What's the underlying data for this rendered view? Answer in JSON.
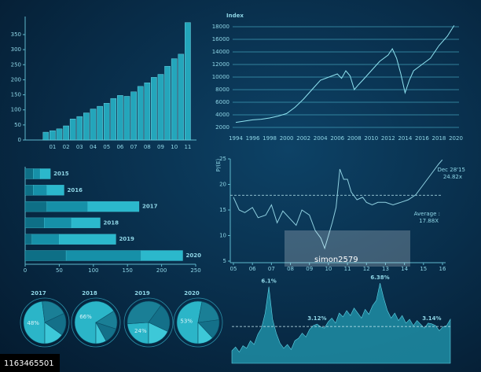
{
  "chart_data": [
    {
      "type": "bar",
      "color": "#27b3c6",
      "categories": [
        null,
        "01",
        null,
        "02",
        null,
        "03",
        null,
        "04",
        null,
        "05",
        null,
        "06",
        null,
        "07",
        null,
        "08",
        null,
        "09",
        null,
        "10",
        null,
        "11"
      ],
      "values": [
        26,
        31,
        37,
        47,
        70,
        78,
        90,
        103,
        112,
        122,
        138,
        148,
        145,
        160,
        178,
        190,
        208,
        218,
        245,
        270,
        285,
        390
      ],
      "ylim": [
        0,
        410
      ],
      "yticks": [
        0,
        50,
        100,
        150,
        200,
        250,
        300,
        350
      ]
    },
    {
      "type": "line",
      "title": "Index",
      "color": "#8fe3f0",
      "grid": true,
      "x": [
        1994,
        1995,
        1996,
        1997,
        1998,
        1999,
        2000,
        2001,
        2002,
        2003,
        2004,
        2005,
        2006,
        2006.5,
        2007,
        2007.5,
        2008,
        2008.5,
        2009,
        2010,
        2011,
        2012,
        2012.5,
        2013,
        2013.5,
        2014,
        2014.5,
        2015,
        2016,
        2017,
        2018,
        2019,
        2019.8
      ],
      "values": [
        2800,
        3000,
        3200,
        3300,
        3500,
        3800,
        4200,
        5200,
        6500,
        8000,
        9500,
        10000,
        10500,
        9800,
        11000,
        10200,
        8000,
        8800,
        9500,
        11000,
        12500,
        13500,
        14500,
        13000,
        10500,
        7500,
        9500,
        11000,
        12000,
        13000,
        15000,
        16500,
        18200
      ],
      "xlim": [
        1994,
        2020
      ],
      "xticks": [
        1994,
        1996,
        1998,
        2000,
        2002,
        2004,
        2006,
        2008,
        2010,
        2012,
        2014,
        2016,
        2018,
        2020
      ],
      "ylim": [
        2000,
        18000
      ],
      "yticks": [
        2000,
        4000,
        6000,
        8000,
        10000,
        12000,
        14000,
        16000,
        18000
      ]
    },
    {
      "type": "hbar-stacked",
      "categories": [
        "2015",
        "2016",
        "2017",
        "2018",
        "2019",
        "2020"
      ],
      "series": [
        {
          "color": "#0e6f86",
          "values": [
            12,
            12,
            32,
            28,
            10,
            60
          ]
        },
        {
          "color": "#1690a8",
          "values": [
            10,
            20,
            60,
            40,
            40,
            110
          ]
        },
        {
          "color": "#2bb8cc",
          "values": [
            15,
            25,
            75,
            42,
            83,
            61
          ]
        }
      ],
      "xlim": [
        0,
        250
      ],
      "xticks": [
        0,
        50,
        100,
        150,
        200,
        250
      ]
    },
    {
      "type": "line",
      "y_label": "P/(E)",
      "color": "#8fd0e0",
      "x": [
        5,
        5.3,
        5.6,
        6,
        6.3,
        6.7,
        7,
        7.3,
        7.6,
        8,
        8.3,
        8.6,
        9,
        9.3,
        9.6,
        9.8,
        10,
        10.2,
        10.4,
        10.6,
        10.8,
        11,
        11.2,
        11.5,
        11.8,
        12,
        12.3,
        12.6,
        13,
        13.4,
        13.8,
        14.2,
        14.6,
        15,
        15.4,
        15.8,
        15.99
      ],
      "values": [
        17.5,
        15,
        14.5,
        15.5,
        13.5,
        14,
        16,
        12.5,
        14.8,
        13.2,
        12,
        15,
        14,
        11,
        9.5,
        7.5,
        10,
        12.5,
        15.5,
        23,
        21,
        21,
        18.5,
        17,
        17.5,
        16.5,
        16,
        16.5,
        16.5,
        16,
        16.5,
        17,
        18,
        20,
        22,
        24,
        24.82
      ],
      "average": 17.88,
      "annotations": [
        "Dec 28'15",
        "24.82x",
        "Average :",
        "17.88X"
      ],
      "xlim": [
        5,
        16
      ],
      "xticks": [
        {
          "value": 5,
          "label": "05"
        },
        {
          "value": 6,
          "label": "06"
        },
        {
          "value": 7,
          "label": "07"
        },
        {
          "value": 8,
          "label": "08"
        },
        {
          "value": 9,
          "label": "09"
        },
        10,
        11,
        12,
        13,
        14,
        15,
        16
      ],
      "ylim": [
        5,
        25
      ],
      "yticks": [
        5,
        10,
        15,
        20,
        25
      ]
    },
    {
      "type": "pie",
      "title": "2017",
      "values": [
        48,
        20,
        17,
        15
      ],
      "value_labels": [
        "48%",
        null,
        null,
        null
      ],
      "colors": [
        "#2bb5c8",
        "#1a7f96",
        "#147089",
        "#3dc8d8"
      ]
    },
    {
      "type": "pie",
      "title": "2018",
      "values": [
        66,
        14,
        12,
        8
      ],
      "value_labels": [
        "66%",
        null,
        null,
        null
      ],
      "colors": [
        "#2bb5c8",
        "#1a7f96",
        "#147089",
        "#3dc8d8"
      ]
    },
    {
      "type": "pie",
      "title": "2019",
      "values": [
        24,
        36,
        22,
        18
      ],
      "value_labels": [
        "24%",
        null,
        null,
        null
      ],
      "colors": [
        "#2bb5c8",
        "#1a7f96",
        "#147089",
        "#3dc8d8"
      ]
    },
    {
      "type": "pie",
      "title": "2020",
      "values": [
        53,
        20,
        15,
        12
      ],
      "value_labels": [
        "53%",
        null,
        null,
        null
      ],
      "colors": [
        "#2bb5c8",
        "#1a7f96",
        "#147089",
        "#3dc8d8"
      ]
    },
    {
      "type": "area",
      "color": "#1f8ea6",
      "reference": 2.93,
      "values": [
        1.0,
        1.3,
        0.9,
        1.4,
        1.2,
        1.8,
        1.5,
        2.3,
        2.8,
        4.0,
        6.1,
        3.5,
        2.4,
        1.6,
        1.2,
        1.5,
        1.1,
        1.8,
        2.0,
        2.4,
        2.1,
        2.7,
        3.0,
        3.12,
        2.9,
        2.8,
        3.3,
        3.6,
        3.2,
        4.0,
        3.7,
        4.2,
        3.8,
        4.4,
        4.0,
        3.6,
        4.3,
        3.9,
        4.6,
        5.0,
        6.38,
        5.2,
        4.2,
        3.6,
        4.0,
        3.4,
        3.8,
        3.2,
        3.5,
        3.0,
        3.4,
        3.1,
        2.8,
        3.2,
        3.14,
        3.0,
        2.6,
        2.9,
        3.0,
        3.5
      ],
      "value_labels": [
        null,
        null,
        null,
        null,
        null,
        null,
        null,
        null,
        null,
        null,
        "6.1%",
        null,
        null,
        null,
        null,
        null,
        null,
        null,
        null,
        null,
        null,
        null,
        null,
        "3.12%",
        null,
        null,
        null,
        null,
        null,
        null,
        null,
        null,
        null,
        null,
        null,
        null,
        null,
        null,
        null,
        null,
        "6.38%",
        null,
        null,
        null,
        null,
        null,
        null,
        null,
        null,
        null,
        null,
        null,
        null,
        null,
        "3.14%",
        null,
        null,
        null,
        null,
        null
      ]
    }
  ],
  "watermark": "simon2579",
  "credit": "1163465501"
}
